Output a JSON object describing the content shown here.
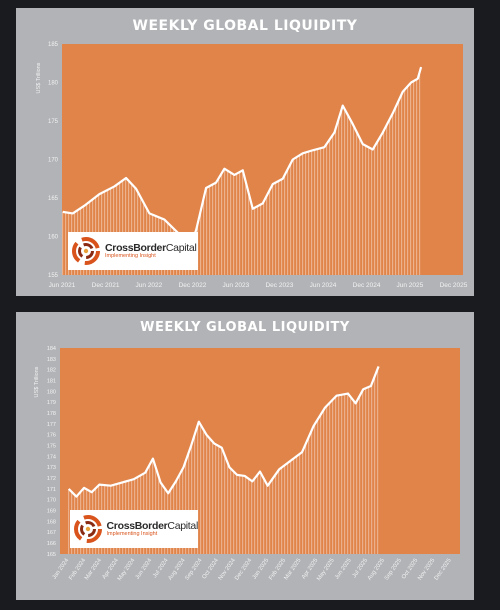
{
  "colors": {
    "background": "#1a1b1f",
    "panel": "#b1b3b6",
    "plot": "#e0844a",
    "line": "#ffffff"
  },
  "logo": {
    "name_bold": "CrossBorder",
    "name_thin": "Capital",
    "tagline": "Implementing Insight"
  },
  "chart_data": [
    {
      "type": "area",
      "title": "WEEKLY GLOBAL LIQUIDITY",
      "ylabel": "US$ Trillions",
      "ylim": [
        155,
        185
      ],
      "yticks": [
        155,
        160,
        165,
        170,
        175,
        180,
        185
      ],
      "xlabels": [
        "Jun 2021",
        "Dec 2021",
        "Jun 2022",
        "Dec 2022",
        "Jun 2023",
        "Dec 2023",
        "Jun 2024",
        "Dec 2024",
        "Jun 2025",
        "Dec 2025"
      ],
      "x": [
        "2021-06-04",
        "2021-07-16",
        "2021-09-03",
        "2021-11-05",
        "2022-01-07",
        "2022-02-25",
        "2022-04-08",
        "2022-06-03",
        "2022-08-05",
        "2022-09-30",
        "2022-11-04",
        "2022-12-16",
        "2023-01-27",
        "2023-03-10",
        "2023-04-14",
        "2023-05-26",
        "2023-06-30",
        "2023-08-11",
        "2023-09-22",
        "2023-11-03",
        "2023-12-15",
        "2024-01-26",
        "2024-03-08",
        "2024-04-19",
        "2024-06-07",
        "2024-07-19",
        "2024-08-23",
        "2024-10-04",
        "2024-11-15",
        "2024-12-27",
        "2025-02-07",
        "2025-03-21",
        "2025-05-02",
        "2025-06-06",
        "2025-07-04",
        "2025-07-18"
      ],
      "y": [
        163.2,
        163.0,
        164.0,
        165.5,
        166.5,
        167.6,
        166.2,
        163.0,
        162.2,
        160.5,
        157.5,
        160.8,
        166.3,
        167.0,
        168.8,
        168.0,
        168.6,
        163.6,
        164.3,
        166.8,
        167.5,
        170.0,
        170.8,
        171.2,
        171.6,
        173.5,
        177.0,
        174.6,
        172.0,
        171.3,
        173.5,
        176.0,
        178.8,
        180.0,
        180.5,
        182.0
      ]
    },
    {
      "type": "area",
      "title": "WEEKLY GLOBAL LIQUIDITY",
      "ylabel": "US$ Trillions",
      "ylim": [
        165,
        184
      ],
      "yticks": [
        165,
        166,
        167,
        168,
        169,
        170,
        171,
        172,
        173,
        174,
        175,
        176,
        177,
        178,
        179,
        180,
        181,
        182,
        183,
        184
      ],
      "xlabels": [
        "Jan 2024",
        "Feb 2024",
        "Mar 2024",
        "Apr 2024",
        "May 2024",
        "Jun 2024",
        "Jul 2024",
        "Aug 2024",
        "Sep 2024",
        "Oct 2024",
        "Nov 2024",
        "Dec 2024",
        "Jan 2025",
        "Feb 2025",
        "Mar 2025",
        "Apr 2025",
        "May 2025",
        "Jun 2025",
        "Jul 2025",
        "Aug 2025",
        "Sep 2025",
        "Oct 2025",
        "Nov 2025",
        "Dec 2025"
      ],
      "x": [
        "2024-01-05",
        "2024-01-19",
        "2024-02-02",
        "2024-02-16",
        "2024-03-01",
        "2024-03-22",
        "2024-04-12",
        "2024-05-03",
        "2024-05-24",
        "2024-06-07",
        "2024-06-21",
        "2024-07-05",
        "2024-07-19",
        "2024-08-02",
        "2024-08-16",
        "2024-08-30",
        "2024-09-13",
        "2024-09-27",
        "2024-10-11",
        "2024-10-25",
        "2024-11-08",
        "2024-11-22",
        "2024-12-06",
        "2024-12-20",
        "2025-01-03",
        "2025-01-24",
        "2025-02-14",
        "2025-03-07",
        "2025-03-28",
        "2025-04-18",
        "2025-05-09",
        "2025-05-30",
        "2025-06-13",
        "2025-06-27",
        "2025-07-11",
        "2025-07-25"
      ],
      "y": [
        171.0,
        170.3,
        171.1,
        170.7,
        171.4,
        171.3,
        171.6,
        171.9,
        172.5,
        173.8,
        171.6,
        170.6,
        171.7,
        173.0,
        175.0,
        177.2,
        176.0,
        175.2,
        174.8,
        173.0,
        172.3,
        172.2,
        171.7,
        172.6,
        171.3,
        172.8,
        173.6,
        174.4,
        176.8,
        178.5,
        179.6,
        179.8,
        178.9,
        180.2,
        180.5,
        182.3
      ]
    }
  ]
}
